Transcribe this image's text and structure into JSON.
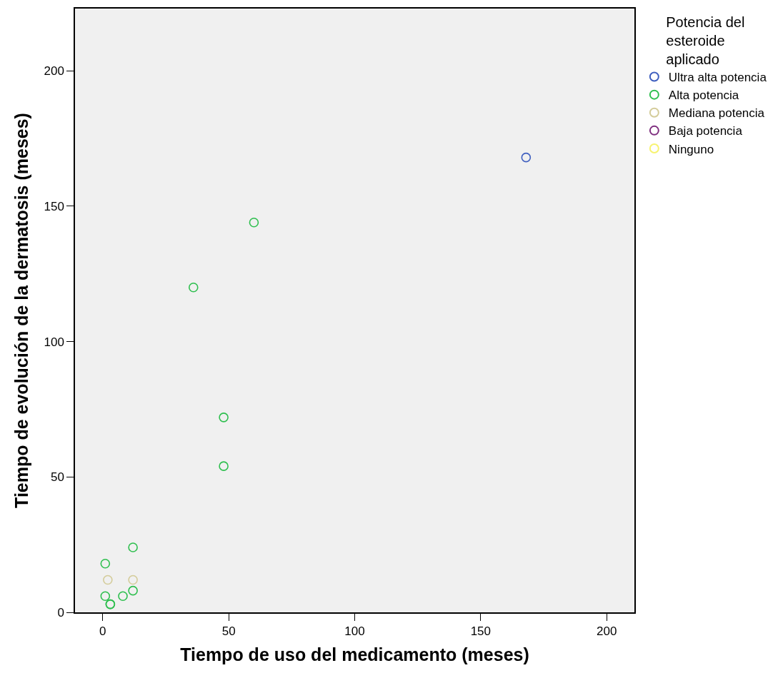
{
  "chart_data": {
    "type": "scatter",
    "xlabel": "Tiempo de uso del medicamento (meses)",
    "ylabel": "Tiempo de evolución de la dermatosis (meses)",
    "legend_title": "Potencia del esteroide aplicado",
    "xlim": [
      -11,
      211
    ],
    "ylim": [
      0,
      223
    ],
    "xticks": [
      0,
      50,
      100,
      150,
      200
    ],
    "yticks": [
      0,
      50,
      100,
      150,
      200
    ],
    "grid": false,
    "legend": "top right",
    "marker": "circle",
    "series": [
      {
        "name": "Ultra alta potencia",
        "color": "#3f5fbf",
        "x": [
          168
        ],
        "values": [
          168
        ]
      },
      {
        "name": "Alta potencia",
        "color": "#2fbf4f",
        "x": [
          60,
          36,
          48,
          48,
          12,
          1,
          1,
          3,
          3,
          8,
          12
        ],
        "values": [
          144,
          120,
          72,
          54,
          24,
          18,
          6,
          3,
          3,
          6,
          8
        ]
      },
      {
        "name": "Mediana potencia",
        "color": "#d4cc9a",
        "x": [
          2,
          12
        ],
        "values": [
          12,
          12
        ]
      },
      {
        "name": "Baja potencia",
        "color": "#7f2f7f"
      },
      {
        "name": "Ninguno",
        "color": "#f7f36f"
      }
    ]
  }
}
